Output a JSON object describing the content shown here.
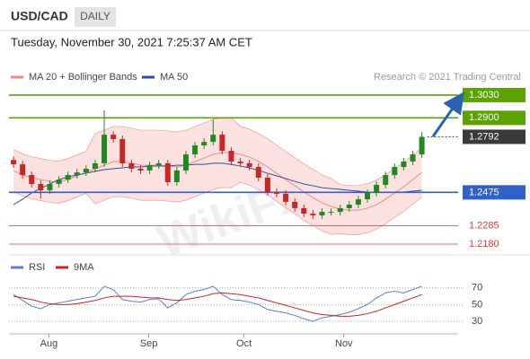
{
  "header": {
    "symbol": "USD/CAD",
    "timeframe": "DAILY",
    "timestamp": "Tuesday, November 30, 2021 7:25:37 AM CET"
  },
  "credit": "Research © 2021 Trading Central",
  "watermark": "WikiFX",
  "chart_data": [
    {
      "type": "candlestick",
      "up_color": "#1f8a1f",
      "down_color": "#c62828",
      "x": [
        0,
        1,
        2,
        3,
        4,
        5,
        6,
        7,
        8,
        9,
        10,
        11,
        12,
        13,
        14,
        15,
        16,
        17,
        18,
        19,
        20,
        21,
        22,
        23,
        24,
        25,
        26,
        27,
        28,
        29,
        30,
        31,
        32,
        33,
        34,
        35,
        36,
        37,
        38,
        39,
        40,
        41,
        42,
        43,
        44,
        45
      ],
      "xlim": [
        -0.5,
        49
      ],
      "xticks": [
        {
          "value": 3.9,
          "label": "Aug"
        },
        {
          "value": 14.9,
          "label": "Sep"
        },
        {
          "value": 25.4,
          "label": "Oct"
        },
        {
          "value": 36.4,
          "label": "Nov"
        }
      ],
      "ylim": [
        1.2139,
        1.3086
      ],
      "open": [
        1.266,
        1.2635,
        1.2574,
        1.2523,
        1.2487,
        1.2523,
        1.2548,
        1.2574,
        1.2589,
        1.261,
        1.2641,
        1.2804,
        1.2779,
        1.2641,
        1.261,
        1.26,
        1.263,
        1.2641,
        1.2533,
        1.26,
        1.2692,
        1.2743,
        1.2763,
        1.2804,
        1.2712,
        1.2651,
        1.2641,
        1.262,
        1.2559,
        1.2477,
        1.2467,
        1.2421,
        1.2385,
        1.2354,
        1.2344,
        1.2364,
        1.2364,
        1.2385,
        1.2405,
        1.2436,
        1.2472,
        1.2518,
        1.2574,
        1.262,
        1.2651,
        1.2692
      ],
      "high": [
        1.268,
        1.2655,
        1.2594,
        1.2543,
        1.2543,
        1.2568,
        1.2594,
        1.2609,
        1.263,
        1.2661,
        1.2943,
        1.2824,
        1.2799,
        1.2661,
        1.263,
        1.265,
        1.2661,
        1.2661,
        1.262,
        1.2712,
        1.2763,
        1.2783,
        1.2891,
        1.2824,
        1.2732,
        1.2671,
        1.2661,
        1.264,
        1.2579,
        1.2497,
        1.2487,
        1.2441,
        1.2405,
        1.2374,
        1.2384,
        1.2384,
        1.2405,
        1.2425,
        1.2456,
        1.2492,
        1.2538,
        1.2594,
        1.264,
        1.2671,
        1.2712,
        1.282
      ],
      "low": [
        1.2615,
        1.2554,
        1.2503,
        1.244,
        1.2467,
        1.2503,
        1.2528,
        1.2554,
        1.2569,
        1.259,
        1.2621,
        1.2759,
        1.2621,
        1.259,
        1.258,
        1.258,
        1.261,
        1.2513,
        1.2513,
        1.258,
        1.2672,
        1.2723,
        1.2743,
        1.2692,
        1.2631,
        1.2621,
        1.26,
        1.2539,
        1.2457,
        1.2447,
        1.2401,
        1.2365,
        1.2334,
        1.2324,
        1.2324,
        1.2344,
        1.2344,
        1.2365,
        1.2385,
        1.2416,
        1.2452,
        1.2498,
        1.2554,
        1.26,
        1.2631,
        1.2672
      ],
      "close": [
        1.2635,
        1.2574,
        1.2523,
        1.2487,
        1.2523,
        1.2548,
        1.2574,
        1.2589,
        1.261,
        1.2641,
        1.2804,
        1.2779,
        1.2641,
        1.261,
        1.26,
        1.263,
        1.2641,
        1.2533,
        1.26,
        1.2692,
        1.2743,
        1.2763,
        1.2804,
        1.2712,
        1.2651,
        1.2641,
        1.262,
        1.2559,
        1.2477,
        1.2467,
        1.2421,
        1.2385,
        1.2354,
        1.2344,
        1.2364,
        1.2364,
        1.2385,
        1.2405,
        1.2436,
        1.2472,
        1.2518,
        1.2574,
        1.262,
        1.2651,
        1.2692,
        1.2792
      ],
      "series": [
        {
          "name": "MA 20 + Bollinger Bands",
          "color": "#f08a8a",
          "band_color": "#fbdada",
          "values": [
            1.26,
            1.2574,
            1.2559,
            1.2548,
            1.2538,
            1.2533,
            1.2548,
            1.2569,
            1.2589,
            1.261,
            1.263,
            1.2651,
            1.2651,
            1.2641,
            1.263,
            1.263,
            1.263,
            1.2625,
            1.262,
            1.263,
            1.2651,
            1.2671,
            1.2692,
            1.2702,
            1.2702,
            1.2692,
            1.2676,
            1.2651,
            1.262,
            1.2584,
            1.2548,
            1.2513,
            1.2477,
            1.2446,
            1.2415,
            1.2395,
            1.2379,
            1.2374,
            1.2374,
            1.2385,
            1.2405,
            1.2436,
            1.2472,
            1.2507,
            1.2548,
            1.2589
          ],
          "upper": [
            1.272,
            1.2694,
            1.2679,
            1.2668,
            1.2658,
            1.2653,
            1.2668,
            1.2689,
            1.2709,
            1.281,
            1.283,
            1.2851,
            1.2851,
            1.2841,
            1.283,
            1.283,
            1.283,
            1.2825,
            1.282,
            1.283,
            1.2851,
            1.2871,
            1.2892,
            1.2902,
            1.2902,
            1.2852,
            1.2836,
            1.2811,
            1.278,
            1.2744,
            1.2708,
            1.2673,
            1.2637,
            1.2606,
            1.2575,
            1.2555,
            1.2519,
            1.2514,
            1.2514,
            1.2525,
            1.2545,
            1.2576,
            1.2612,
            1.2647,
            1.2688,
            1.2729
          ],
          "lower": [
            1.248,
            1.2454,
            1.2439,
            1.2428,
            1.2418,
            1.2413,
            1.2428,
            1.2449,
            1.2469,
            1.241,
            1.243,
            1.2451,
            1.2451,
            1.2441,
            1.243,
            1.243,
            1.243,
            1.2425,
            1.242,
            1.243,
            1.2451,
            1.2471,
            1.2492,
            1.2502,
            1.2502,
            1.2532,
            1.2516,
            1.2491,
            1.246,
            1.2424,
            1.2388,
            1.2353,
            1.2317,
            1.2286,
            1.2255,
            1.2235,
            1.2239,
            1.2234,
            1.2234,
            1.2245,
            1.2265,
            1.2296,
            1.2332,
            1.2367,
            1.2408,
            1.2449
          ]
        },
        {
          "name": "MA 50",
          "color": "#2b4fa0",
          "values": [
            1.2405,
            1.2436,
            1.2472,
            1.2497,
            1.2523,
            1.2548,
            1.2564,
            1.2574,
            1.2584,
            1.2595,
            1.2605,
            1.261,
            1.2615,
            1.262,
            1.262,
            1.2625,
            1.2625,
            1.2625,
            1.263,
            1.263,
            1.2635,
            1.2635,
            1.2641,
            1.2641,
            1.2635,
            1.2625,
            1.2615,
            1.26,
            1.2584,
            1.2569,
            1.2554,
            1.2538,
            1.2523,
            1.2513,
            1.2502,
            1.2497,
            1.2492,
            1.2487,
            1.2482,
            1.2477,
            1.2477,
            1.2477,
            1.2477,
            1.2477,
            1.2482,
            1.2487
          ]
        }
      ],
      "levels": [
        {
          "value": 1.303,
          "label": "1.3030",
          "color": "#5aa300",
          "style": "box",
          "line": "solid"
        },
        {
          "value": 1.29,
          "label": "1.2900",
          "color": "#5aa300",
          "style": "box",
          "line": "solid"
        },
        {
          "value": 1.2792,
          "color": "#3a3a3a",
          "style": "box",
          "line": "dotted"
        },
        {
          "value": 1.2475,
          "color": "#2f62c8",
          "style": "box",
          "line": "solid"
        },
        {
          "value": 1.2285,
          "color": "#e03a3a",
          "style": "text",
          "line": "solid"
        },
        {
          "value": 1.218,
          "label": "1.2180",
          "color": "#e03a3a",
          "style": "text",
          "line": "solid"
        }
      ]
    },
    {
      "type": "line",
      "ylim": [
        17,
        87
      ],
      "yticks": [
        70,
        50,
        30
      ],
      "series": [
        {
          "name": "RSI",
          "color": "#5a7fd6",
          "values": [
            62,
            55,
            48,
            45,
            50,
            52,
            54,
            56,
            58,
            60,
            72,
            68,
            56,
            54,
            53,
            56,
            57,
            46,
            52,
            62,
            66,
            68,
            72,
            62,
            56,
            55,
            53,
            50,
            44,
            42,
            40,
            37,
            33,
            30,
            34,
            36,
            38,
            41,
            45,
            50,
            58,
            64,
            66,
            64,
            68,
            72
          ]
        },
        {
          "name": "9MA",
          "color": "#d42020",
          "values": [
            60,
            58,
            56,
            53,
            51,
            50,
            50,
            51,
            53,
            55,
            58,
            60,
            60,
            60,
            59,
            58,
            58,
            56,
            55,
            56,
            58,
            60,
            63,
            64,
            63,
            62,
            60,
            58,
            55,
            52,
            49,
            46,
            43,
            40,
            38,
            37,
            36,
            36,
            37,
            39,
            42,
            46,
            50,
            54,
            58,
            62
          ]
        }
      ]
    }
  ]
}
